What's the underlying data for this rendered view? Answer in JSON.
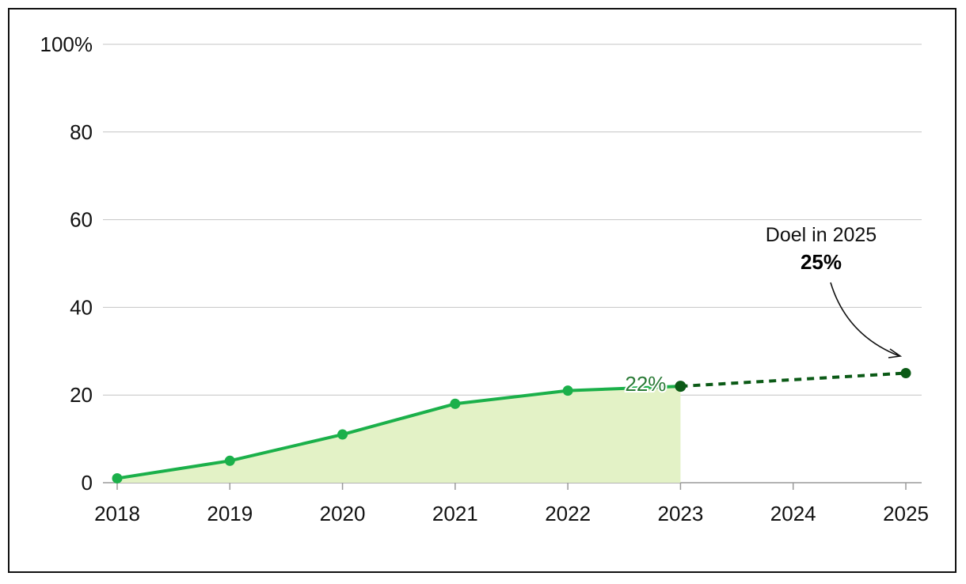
{
  "chart_data": {
    "type": "line",
    "title": "",
    "xlabel": "",
    "ylabel": "",
    "x": [
      2018,
      2019,
      2020,
      2021,
      2022,
      2023
    ],
    "xlim": [
      2018,
      2025
    ],
    "xticks": [
      "2018",
      "2019",
      "2020",
      "2021",
      "2022",
      "2023",
      "2024",
      "2025"
    ],
    "ylim": [
      0,
      100
    ],
    "yticks": [
      0,
      20,
      40,
      60,
      80,
      100
    ],
    "ytick_labels": [
      "0",
      "20",
      "40",
      "60",
      "80",
      "100%"
    ],
    "grid": "horizontal",
    "series": [
      {
        "values": [
          1,
          5,
          11,
          18,
          21,
          22
        ],
        "style": "solid",
        "fill": "area"
      }
    ],
    "projection": {
      "x": [
        2023,
        2025
      ],
      "values": [
        22,
        25
      ],
      "style": "dashed"
    },
    "data_label": {
      "x": 2023,
      "value": 22,
      "text": "22%"
    },
    "annotation": {
      "x": 2025,
      "value": 25,
      "line1": "Doel in 2025",
      "line2": "25%"
    },
    "colors": {
      "line": "#1bb04a",
      "area": "#e3f2c6",
      "projection": "#0b5a16",
      "grid": "#c4c4c4",
      "axis": "#9a9a9a",
      "data_label": "#2a7a36"
    }
  }
}
